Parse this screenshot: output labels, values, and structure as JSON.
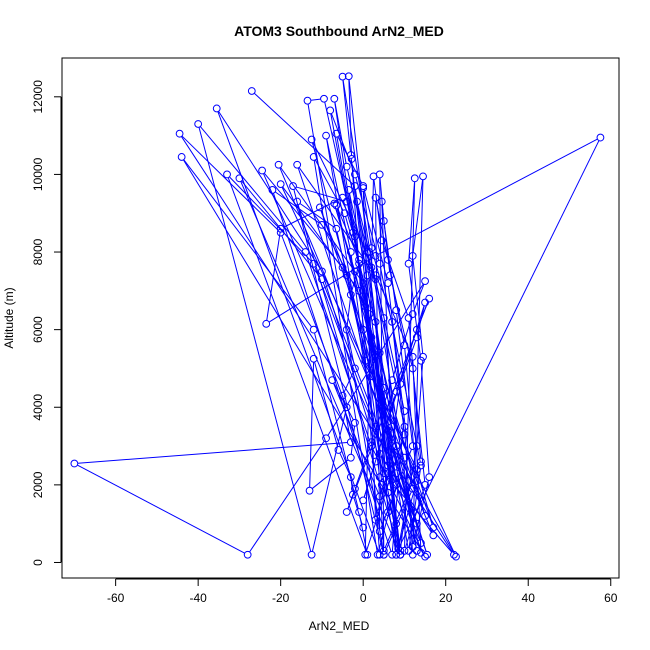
{
  "chart_data": {
    "type": "line",
    "title": "ATOM3 Southbound ArN2_MED",
    "xlabel": "ArN2_MED",
    "ylabel": "Altitude (m)",
    "xlim": [
      -73,
      62
    ],
    "ylim": [
      -400,
      13000
    ],
    "xticks": [
      "-60",
      "-40",
      "-20",
      "0",
      "20",
      "40",
      "60"
    ],
    "xtick_values": [
      -60,
      -40,
      -20,
      0,
      20,
      40,
      60
    ],
    "yticks": [
      "0",
      "2000",
      "4000",
      "6000",
      "8000",
      "10000",
      "12000"
    ],
    "ytick_values": [
      0,
      2000,
      4000,
      6000,
      8000,
      10000,
      12000
    ],
    "grid": false,
    "marker": "open-circle",
    "series_color": "#0000ff",
    "series": [
      {
        "points": [
          [
            -27,
            12150
          ],
          [
            -2,
            9700
          ],
          [
            7,
            3500
          ],
          [
            13,
            300
          ],
          [
            -5,
            12520
          ],
          [
            -3,
            10500
          ],
          [
            2,
            5800
          ],
          [
            9,
            200
          ],
          [
            -3.5,
            12530
          ],
          [
            -2.8,
            10400
          ],
          [
            0,
            6000
          ],
          [
            4,
            200
          ],
          [
            -35.5,
            11700
          ],
          [
            -10,
            7500
          ],
          [
            5,
            2300
          ],
          [
            22,
            200
          ],
          [
            -44.5,
            11050
          ],
          [
            -20,
            8500
          ],
          [
            -4,
            4000
          ],
          [
            -12.5,
            200
          ],
          [
            -40,
            11300
          ],
          [
            -14,
            8000
          ],
          [
            2,
            3000
          ],
          [
            15,
            150
          ],
          [
            -44,
            10450
          ],
          [
            -12,
            6000
          ],
          [
            -1,
            1300
          ],
          [
            1,
            200
          ],
          [
            -33,
            10000
          ],
          [
            -12,
            7700
          ],
          [
            3,
            3500
          ],
          [
            9,
            200
          ],
          [
            -30,
            9900
          ],
          [
            -10,
            7300
          ],
          [
            8,
            2300
          ],
          [
            13,
            1000
          ],
          [
            -24.5,
            10100
          ],
          [
            -5,
            7600
          ],
          [
            7,
            3000
          ],
          [
            22.5,
            150
          ],
          [
            -20,
            9750
          ],
          [
            -1,
            7000
          ],
          [
            4,
            2800
          ],
          [
            17,
            700
          ],
          [
            -20.5,
            10250
          ],
          [
            0,
            7200
          ],
          [
            6,
            3400
          ],
          [
            15.5,
            200
          ],
          [
            -16,
            10250
          ],
          [
            3,
            7400
          ],
          [
            12,
            5300
          ],
          [
            14,
            250
          ],
          [
            -12.5,
            10900
          ],
          [
            1,
            8000
          ],
          [
            5,
            4500
          ],
          [
            8,
            200
          ],
          [
            -9,
            11000
          ],
          [
            -3,
            8000
          ],
          [
            4,
            2200
          ],
          [
            5,
            200
          ],
          [
            -13.5,
            11900
          ],
          [
            -9.5,
            11950
          ],
          [
            -2,
            8400
          ],
          [
            6,
            1800
          ],
          [
            9,
            200
          ],
          [
            -7,
            11950
          ],
          [
            -4,
            10200
          ],
          [
            2,
            7600
          ],
          [
            10,
            3500
          ],
          [
            12,
            200
          ],
          [
            -8,
            11650
          ],
          [
            -2,
            10000
          ],
          [
            4,
            7700
          ],
          [
            14,
            2500
          ],
          [
            11,
            300
          ],
          [
            -6.5,
            11050
          ],
          [
            0,
            9700
          ],
          [
            6,
            7200
          ],
          [
            12,
            1900
          ],
          [
            5,
            200
          ],
          [
            -17,
            9700
          ],
          [
            -4,
            9300
          ],
          [
            3,
            7300
          ],
          [
            10,
            3900
          ],
          [
            7,
            200
          ],
          [
            -22,
            9600
          ],
          [
            -10,
            8700
          ],
          [
            0.5,
            6600
          ],
          [
            8,
            2000
          ],
          [
            3.5,
            200
          ],
          [
            -12,
            10450
          ],
          [
            -4.5,
            9000
          ],
          [
            3,
            6200
          ],
          [
            6,
            1300
          ],
          [
            9,
            200
          ],
          [
            -16,
            9300
          ],
          [
            -6.5,
            8600
          ],
          [
            0.5,
            5200
          ],
          [
            13,
            2400
          ],
          [
            17,
            900
          ],
          [
            -10.5,
            9150
          ],
          [
            -4,
            7400
          ],
          [
            2,
            4800
          ],
          [
            10,
            2700
          ],
          [
            15,
            1200
          ],
          [
            -7,
            9250
          ],
          [
            -2,
            7500
          ],
          [
            3,
            5300
          ],
          [
            6,
            2500
          ],
          [
            14,
            500
          ],
          [
            -6.5,
            9200
          ],
          [
            -1,
            7800
          ],
          [
            1.5,
            6400
          ],
          [
            4.5,
            2000
          ],
          [
            8,
            1000
          ],
          [
            -3.5,
            9600
          ],
          [
            1,
            7400
          ],
          [
            4,
            5400
          ],
          [
            11,
            2100
          ],
          [
            9,
            300
          ],
          [
            -1.5,
            9300
          ],
          [
            1.5,
            8000
          ],
          [
            5,
            6300
          ],
          [
            8,
            3000
          ],
          [
            3,
            1100
          ],
          [
            0,
            9650
          ],
          [
            2,
            8100
          ],
          [
            7,
            6200
          ],
          [
            10,
            3300
          ],
          [
            0.5,
            200
          ],
          [
            2.5,
            9950
          ],
          [
            4.5,
            8300
          ],
          [
            11,
            6300
          ],
          [
            14,
            2600
          ],
          [
            5,
            300
          ],
          [
            4,
            10000
          ],
          [
            5,
            8800
          ],
          [
            8,
            6500
          ],
          [
            12,
            3000
          ],
          [
            4,
            800
          ],
          [
            3,
            9400
          ],
          [
            6,
            7800
          ],
          [
            10,
            5600
          ],
          [
            13,
            2100
          ],
          [
            8,
            200
          ],
          [
            4.5,
            9300
          ],
          [
            6.5,
            7400
          ],
          [
            12,
            5000
          ],
          [
            15,
            2000
          ],
          [
            10,
            300
          ],
          [
            12.5,
            9900
          ],
          [
            11,
            7700
          ],
          [
            14,
            5200
          ],
          [
            16,
            2200
          ],
          [
            12,
            400
          ],
          [
            14.5,
            9950
          ],
          [
            12,
            7900
          ],
          [
            14.5,
            5300
          ],
          [
            13,
            3000
          ],
          [
            8.5,
            350
          ],
          [
            57.5,
            10950
          ],
          [
            3,
            7900
          ],
          [
            -23.5,
            6150
          ],
          [
            -20,
            8600
          ],
          [
            -5,
            9400
          ],
          [
            -2.5,
            8500
          ],
          [
            -1,
            7700
          ],
          [
            -3,
            6900
          ],
          [
            -4,
            6000
          ],
          [
            -2,
            5000
          ],
          [
            -5,
            4300
          ],
          [
            -3,
            3100
          ],
          [
            -70,
            2550
          ],
          [
            -28,
            200
          ],
          [
            -9,
            3200
          ],
          [
            15,
            7250
          ],
          [
            12,
            6400
          ],
          [
            7,
            4700
          ],
          [
            2,
            3100
          ],
          [
            -2,
            1900
          ],
          [
            -4,
            1300
          ],
          [
            16,
            6800
          ],
          [
            13,
            6000
          ],
          [
            8,
            4400
          ],
          [
            3,
            2600
          ],
          [
            0,
            1600
          ],
          [
            15,
            6700
          ],
          [
            13,
            5800
          ],
          [
            9,
            4600
          ],
          [
            6,
            2300
          ],
          [
            4,
            1700
          ],
          [
            -7.5,
            4700
          ],
          [
            -2,
            3600
          ],
          [
            -3,
            2700
          ],
          [
            -13,
            1850
          ],
          [
            -12,
            5250
          ],
          [
            -6,
            2900
          ],
          [
            -3,
            2200
          ],
          [
            -2.5,
            1750
          ],
          [
            0,
            900
          ]
        ]
      }
    ]
  }
}
